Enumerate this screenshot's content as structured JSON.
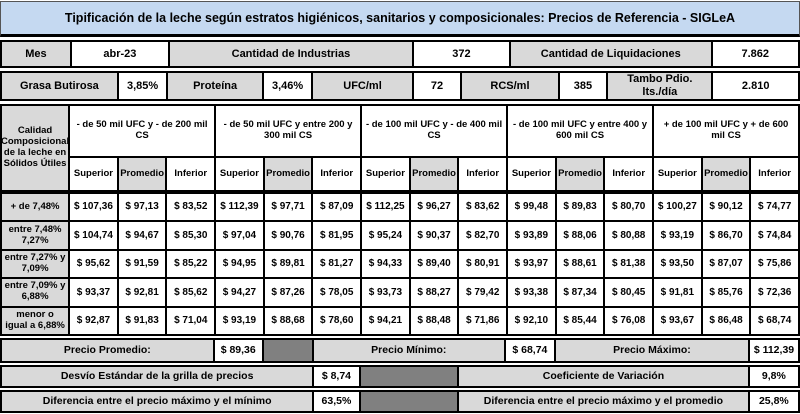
{
  "title": "Tipificación de la leche según estratos higiénicos, sanitarios y composicionales: Precios de Referencia - SIGLeA",
  "info": {
    "mes_label": "Mes",
    "mes_value": "abr-23",
    "industrias_label": "Cantidad de Industrias",
    "industrias_value": "372",
    "liquidaciones_label": "Cantidad de Liquidaciones",
    "liquidaciones_value": "7.862",
    "grasa_label": "Grasa Butirosa",
    "grasa_value": "3,85%",
    "proteina_label": "Proteína",
    "proteina_value": "3,46%",
    "ufc_label": "UFC/ml",
    "ufc_value": "72",
    "rcs_label": "RCS/ml",
    "rcs_value": "385",
    "tambo_label": "Tambo Pdio. lts./día",
    "tambo_value": "2.810"
  },
  "matrix": {
    "corner_label": "Calidad Composicional de la leche en Sólidos Útiles",
    "groups": [
      "- de 50 mil UFC y - de 200 mil CS",
      "- de 50 mil UFC y entre 200 y 300 mil CS",
      "- de 100 mil UFC y - de 400 mil CS",
      "- de 100 mil UFC y entre 400 y 600 mil CS",
      "+ de 100 mil UFC y + de 600 mil CS"
    ],
    "subheaders": [
      "Superior",
      "Promedio",
      "Inferior"
    ],
    "rows": [
      {
        "label": "+ de 7,48%",
        "values": [
          "$ 107,36",
          "$ 97,13",
          "$ 83,52",
          "$ 112,39",
          "$ 97,71",
          "$ 87,09",
          "$ 112,25",
          "$ 96,27",
          "$ 83,62",
          "$ 99,48",
          "$ 89,83",
          "$ 80,70",
          "$ 100,27",
          "$ 90,12",
          "$ 74,77"
        ]
      },
      {
        "label": "entre 7,48% 7,27%",
        "values": [
          "$ 104,74",
          "$ 94,67",
          "$ 85,30",
          "$ 97,04",
          "$ 90,76",
          "$ 81,95",
          "$ 95,24",
          "$ 90,37",
          "$ 82,70",
          "$ 93,89",
          "$ 88,06",
          "$ 80,88",
          "$ 93,19",
          "$ 86,70",
          "$ 74,84"
        ]
      },
      {
        "label": "entre 7,27% y 7,09%",
        "values": [
          "$ 95,62",
          "$ 91,59",
          "$ 85,22",
          "$ 94,95",
          "$ 89,81",
          "$ 81,27",
          "$ 94,33",
          "$ 89,40",
          "$ 80,91",
          "$ 93,97",
          "$ 88,61",
          "$ 81,38",
          "$ 93,50",
          "$ 87,07",
          "$ 75,86"
        ]
      },
      {
        "label": "entre 7,09% y 6,88%",
        "values": [
          "$ 93,37",
          "$ 92,81",
          "$ 85,62",
          "$ 94,27",
          "$ 87,26",
          "$ 78,05",
          "$ 93,73",
          "$ 88,27",
          "$ 79,42",
          "$ 93,38",
          "$ 87,34",
          "$ 80,45",
          "$ 91,81",
          "$ 85,76",
          "$ 72,36"
        ]
      },
      {
        "label": "menor o igual a 6,88%",
        "values": [
          "$ 92,87",
          "$ 91,83",
          "$ 71,04",
          "$ 93,19",
          "$ 88,68",
          "$ 78,60",
          "$ 94,21",
          "$ 88,48",
          "$ 71,86",
          "$ 92,10",
          "$ 85,44",
          "$ 76,08",
          "$ 93,67",
          "$ 86,48",
          "$ 68,74"
        ]
      }
    ]
  },
  "summary": {
    "promedio_label": "Precio Promedio:",
    "promedio_value": "$ 89,36",
    "minimo_label": "Precio Mínimo:",
    "minimo_value": "$ 68,74",
    "maximo_label": "Precio Máximo:",
    "maximo_value": "$ 112,39",
    "desvio_label": "Desvío Estándar de la grilla de precios",
    "desvio_value": "$ 8,74",
    "coef_label": "Coeficiente de Variación",
    "coef_value": "9,8%",
    "dif_min_label": "Diferencia entre el precio máximo y el mínimo",
    "dif_min_value": "63,5%",
    "dif_prom_label": "Diferencia entre el precio máximo y el promedio",
    "dif_prom_value": "25,8%"
  },
  "colors": {
    "title_bg": "#c5d9f1",
    "label_bg": "#d9d9d9",
    "filler_bg": "#808080",
    "cell_bg": "#ffffff",
    "border": "#000000"
  }
}
